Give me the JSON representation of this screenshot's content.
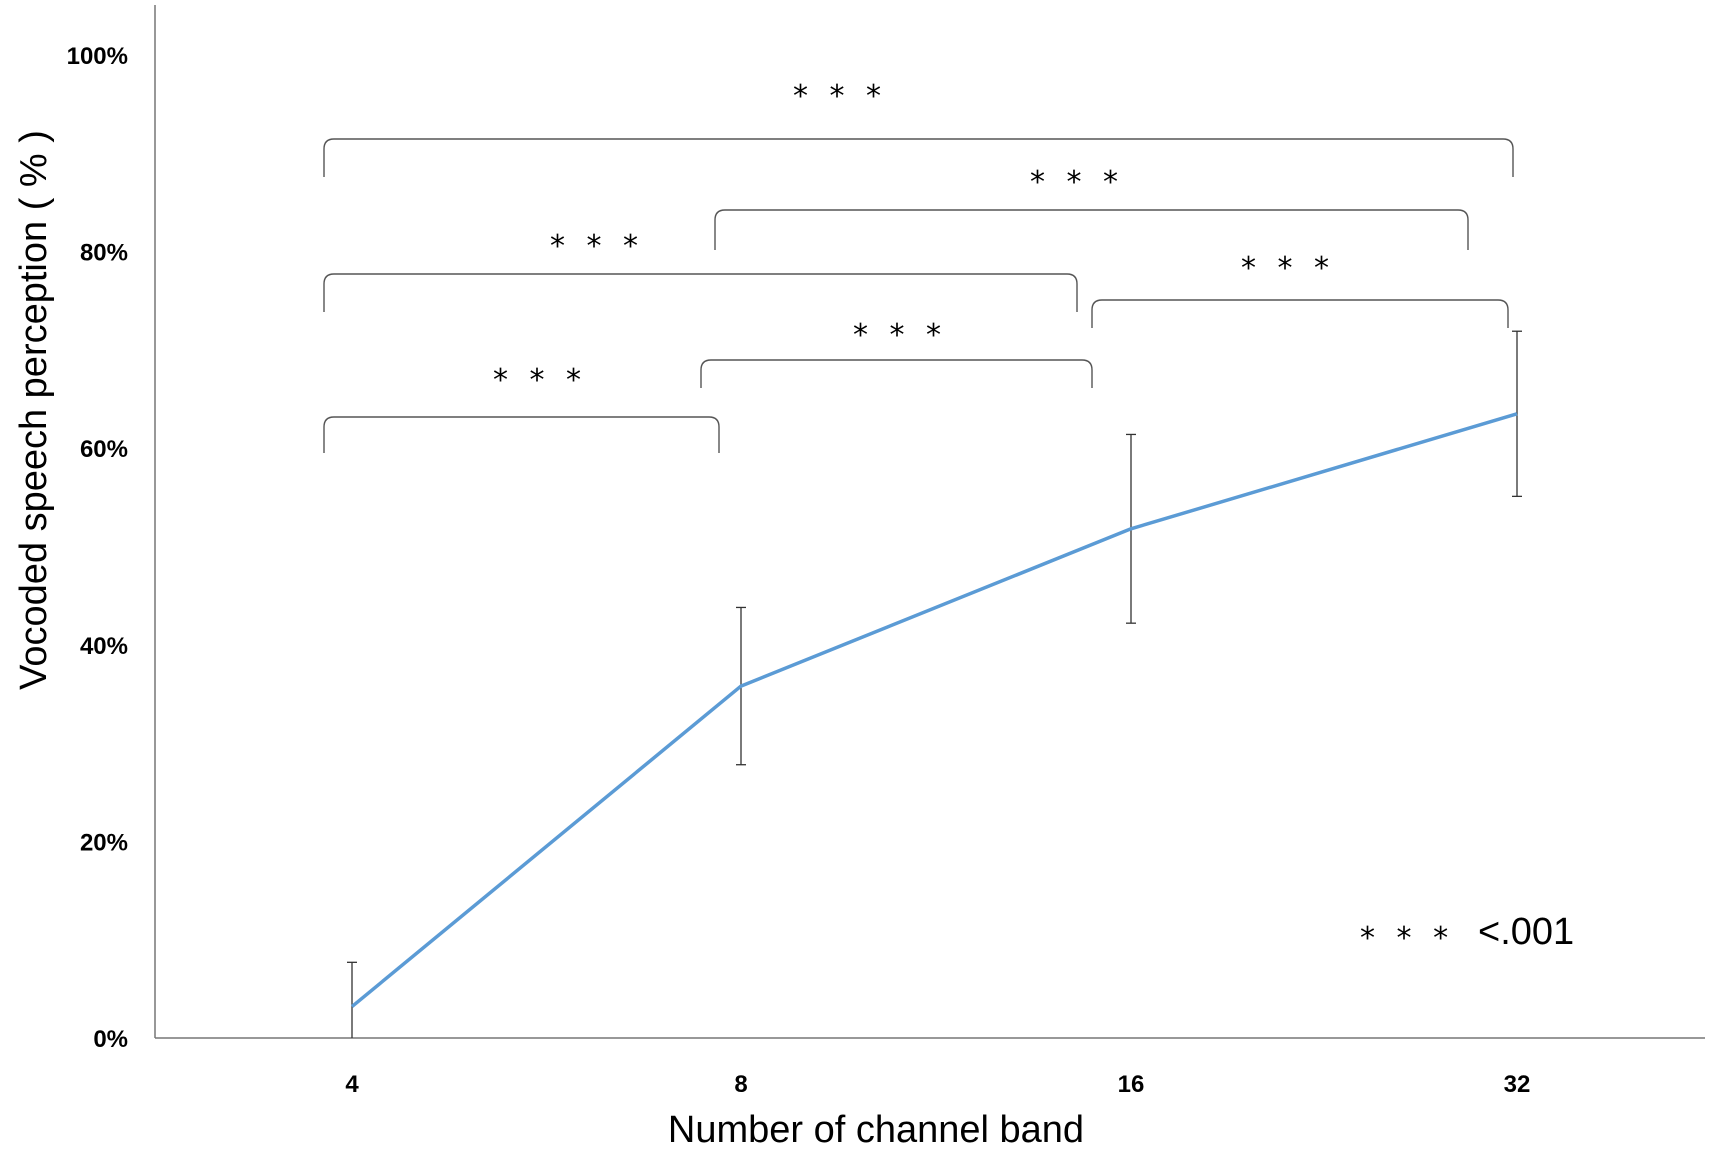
{
  "chart_data": {
    "type": "line",
    "title": "",
    "xlabel": "Number of channel band",
    "ylabel": "Vocoded speech perception ( % )",
    "categories": [
      "4",
      "8",
      "16",
      "32"
    ],
    "series": [
      {
        "values": [
          3.2,
          35.8,
          51.8,
          63.5
        ],
        "error": [
          4.5,
          8.0,
          9.6,
          8.4
        ],
        "color": "#5b9bd5"
      }
    ],
    "ylim": [
      0,
      100
    ],
    "yticks": [
      0,
      20,
      40,
      60,
      80,
      100
    ],
    "ytick_labels": [
      "0%",
      "20%",
      "40%",
      "60%",
      "80%",
      "100%"
    ],
    "grid": false,
    "significance": [
      {
        "from": "4",
        "to": "8",
        "label": "* * *"
      },
      {
        "from": "8",
        "to": "16",
        "label": "* * *"
      },
      {
        "from": "16",
        "to": "32",
        "label": "* * *"
      },
      {
        "from": "4",
        "to": "16",
        "label": "* * *"
      },
      {
        "from": "8",
        "to": "32",
        "label": "* * *"
      },
      {
        "from": "4",
        "to": "32",
        "label": "* * *"
      }
    ],
    "legend_note": {
      "stars": "* * *",
      "text": "<.001"
    }
  }
}
